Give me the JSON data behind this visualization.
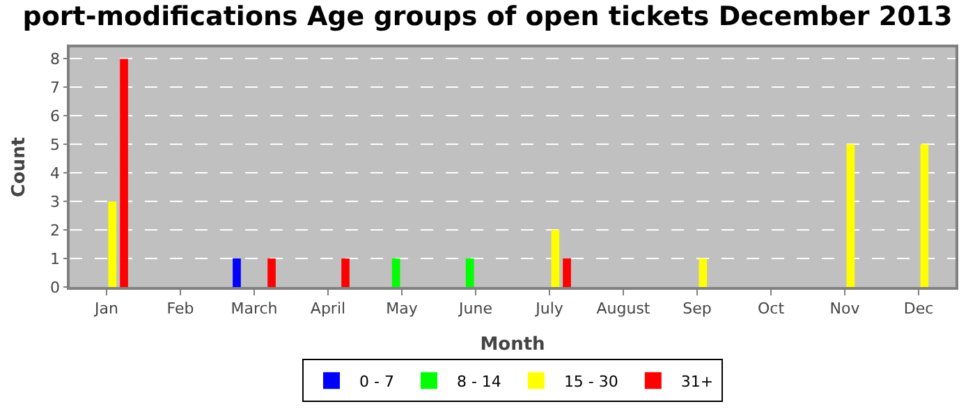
{
  "chart_data": {
    "type": "bar",
    "title": "port-modifications Age groups of open tickets December 2013",
    "xlabel": "Month",
    "ylabel": "Count",
    "categories": [
      "Jan",
      "Feb",
      "March",
      "April",
      "May",
      "June",
      "July",
      "August",
      "Sep",
      "Oct",
      "Nov",
      "Dec"
    ],
    "series": [
      {
        "name": "0 - 7",
        "color": "#0000ff",
        "values": [
          0,
          0,
          1,
          0,
          0,
          0,
          0,
          0,
          0,
          0,
          0,
          0
        ]
      },
      {
        "name": "8 - 14",
        "color": "#00ff00",
        "values": [
          0,
          0,
          0,
          0,
          1,
          1,
          0,
          0,
          0,
          0,
          0,
          0
        ]
      },
      {
        "name": "15 - 30",
        "color": "#ffff00",
        "values": [
          3,
          0,
          0,
          0,
          0,
          0,
          2,
          0,
          1,
          0,
          5,
          5
        ]
      },
      {
        "name": "31+",
        "color": "#ff0000",
        "values": [
          8,
          0,
          1,
          1,
          0,
          0,
          1,
          0,
          0,
          0,
          0,
          0
        ]
      }
    ],
    "ylim": [
      0,
      8.4
    ],
    "yticks": [
      0,
      1,
      2,
      3,
      4,
      5,
      6,
      7,
      8
    ],
    "grid": "y",
    "legend": "bottom"
  }
}
